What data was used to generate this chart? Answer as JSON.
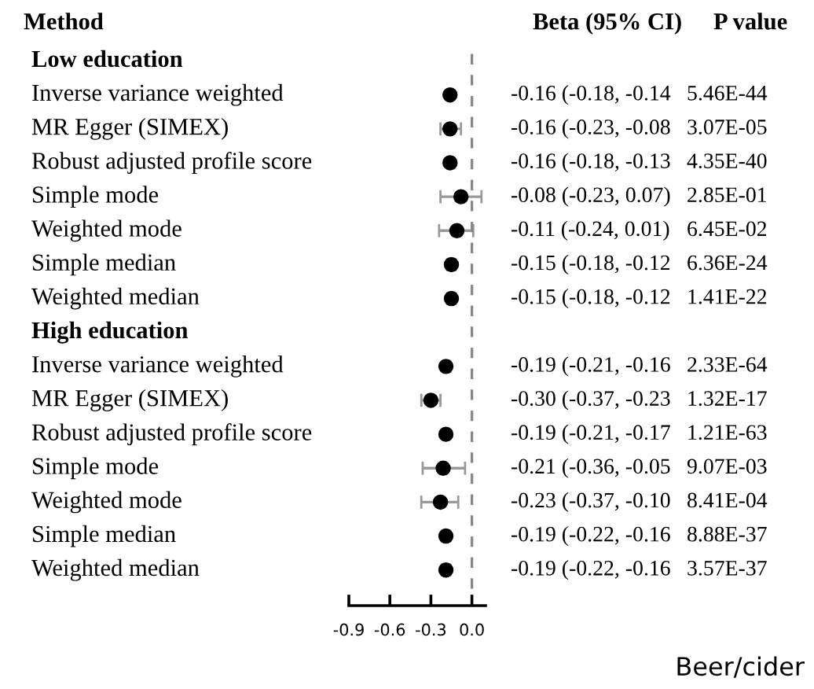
{
  "chart_data": {
    "type": "scatter",
    "title": "Beer/cider",
    "ylabel": "Method",
    "categories": [
      "Low education",
      "Inverse variance weighted",
      "MR Egger (SIMEX)",
      "Robust adjusted profile score",
      "Simple mode",
      "Weighted mode",
      "Simple median",
      "Weighted median",
      "High education",
      "Inverse variance weighted",
      "MR Egger (SIMEX)",
      "Robust adjusted profile score",
      "Simple mode",
      "Weighted mode",
      "Simple median",
      "Weighted median"
    ],
    "orientation": "horizontal",
    "values": [
      null,
      -0.16,
      -0.16,
      -0.16,
      -0.08,
      -0.11,
      -0.15,
      -0.15,
      null,
      -0.19,
      -0.3,
      -0.19,
      -0.21,
      -0.23,
      -0.19,
      -0.19
    ],
    "errors": [
      null,
      [
        -0.18,
        -0.14
      ],
      [
        -0.23,
        -0.08
      ],
      [
        -0.18,
        -0.13
      ],
      [
        -0.23,
        0.07
      ],
      [
        -0.24,
        0.01
      ],
      [
        -0.18,
        -0.12
      ],
      [
        -0.18,
        -0.12
      ],
      null,
      [
        -0.21,
        -0.16
      ],
      [
        -0.37,
        -0.23
      ],
      [
        -0.21,
        -0.17
      ],
      [
        -0.36,
        -0.05
      ],
      [
        -0.37,
        -0.1
      ],
      [
        -0.22,
        -0.16
      ],
      [
        -0.22,
        -0.16
      ]
    ],
    "value_labels": [
      null,
      "-0.16 (-0.18, -0.14",
      "-0.16 (-0.23, -0.08",
      "-0.16 (-0.18, -0.13",
      "-0.08 (-0.23, 0.07)",
      "-0.11 (-0.24, 0.01)",
      "-0.15 (-0.18, -0.12",
      "-0.15 (-0.18, -0.12",
      null,
      "-0.19 (-0.21, -0.16",
      "-0.30 (-0.37, -0.23",
      "-0.19 (-0.21, -0.17",
      "-0.21 (-0.36, -0.05",
      "-0.23 (-0.37, -0.10",
      "-0.19 (-0.22, -0.16",
      "-0.19 (-0.22, -0.16"
    ],
    "annotations": [
      "Beta (95% CI)",
      "P value",
      "5.46E-44",
      "3.07E-05",
      "4.35E-40",
      "2.85E-01",
      "6.45E-02",
      "6.36E-24",
      "1.41E-22",
      "2.33E-64",
      "1.32E-17",
      "1.21E-63",
      "9.07E-03",
      "8.41E-04",
      "8.88E-37",
      "3.57E-37"
    ],
    "color": "#000000",
    "marker": "circle",
    "xlim": [
      -0.9,
      0.1
    ],
    "xticks": [
      {
        "value": -0.9,
        "label": "-0.9"
      },
      {
        "value": -0.6,
        "label": "-0.6"
      },
      {
        "value": -0.3,
        "label": "-0.3"
      },
      {
        "value": 0.0,
        "label": "0.0"
      }
    ],
    "ref_lines": [
      {
        "axis": "x",
        "value": 0,
        "label": null,
        "color": "#888888",
        "line_style": "dashed"
      }
    ],
    "grid": false,
    "legend": false
  }
}
